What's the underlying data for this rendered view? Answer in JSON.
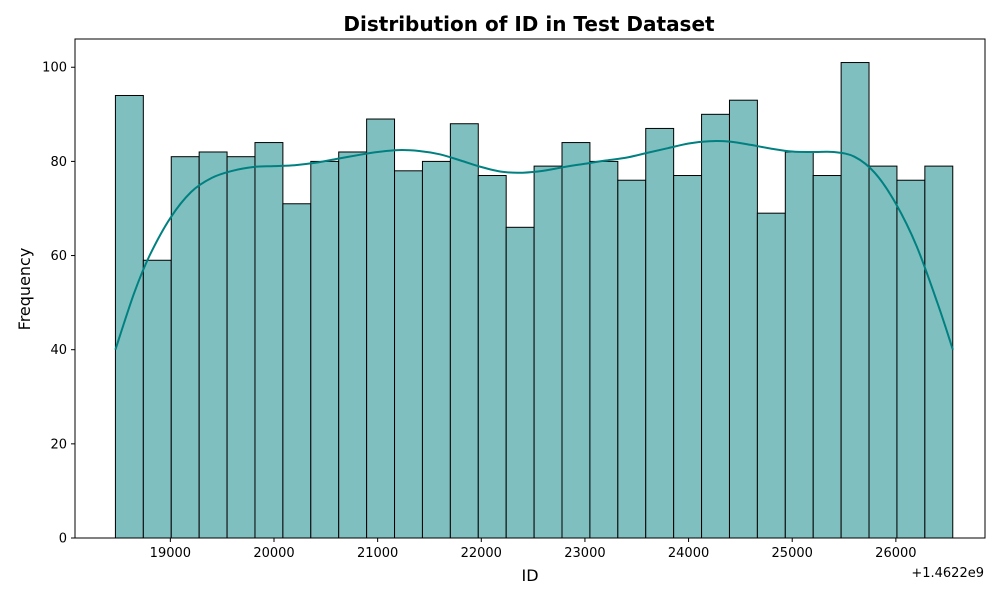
{
  "chart_data": {
    "type": "bar",
    "title": "Distribution of ID in Test Dataset",
    "xlabel": "ID",
    "ylabel": "Frequency",
    "x_offset_label": "+1.4622e9",
    "xlim": [
      18080,
      26860
    ],
    "ylim": [
      0,
      106
    ],
    "x_ticks": [
      19000,
      20000,
      21000,
      22000,
      23000,
      24000,
      25000,
      26000
    ],
    "y_ticks": [
      0,
      20,
      40,
      60,
      80,
      100
    ],
    "bin_start": 18470,
    "bin_width": 269.3,
    "values": [
      94,
      59,
      81,
      82,
      81,
      84,
      71,
      80,
      82,
      89,
      78,
      80,
      88,
      77,
      66,
      79,
      84,
      80,
      76,
      87,
      77,
      90,
      93,
      69,
      82,
      77,
      101,
      79,
      76,
      79
    ],
    "kde": {
      "x": [
        18470,
        18650,
        18800,
        19000,
        19200,
        19400,
        19600,
        19800,
        20000,
        20200,
        20400,
        20600,
        20800,
        21000,
        21200,
        21400,
        21600,
        21800,
        22000,
        22200,
        22400,
        22600,
        22800,
        23000,
        23200,
        23400,
        23600,
        23800,
        24000,
        24200,
        24400,
        24600,
        24800,
        25000,
        25200,
        25400,
        25600,
        25800,
        26000,
        26200,
        26400,
        26550
      ],
      "y": [
        40,
        52,
        60,
        68,
        73.5,
        76.5,
        78,
        78.8,
        79,
        79.2,
        79.7,
        80.5,
        81.3,
        82,
        82.4,
        82.2,
        81.5,
        80.2,
        78.8,
        77.8,
        77.6,
        78,
        78.8,
        79.5,
        80.2,
        80.8,
        81.8,
        82.8,
        83.8,
        84.3,
        84.2,
        83.5,
        82.7,
        82.1,
        82,
        82,
        81,
        77.5,
        71,
        62,
        50,
        40
      ]
    },
    "colors": {
      "bar_fill": "#80bfbf",
      "bar_edge": "#000000",
      "kde_line": "#008080"
    },
    "grid": false,
    "legend": "none"
  }
}
